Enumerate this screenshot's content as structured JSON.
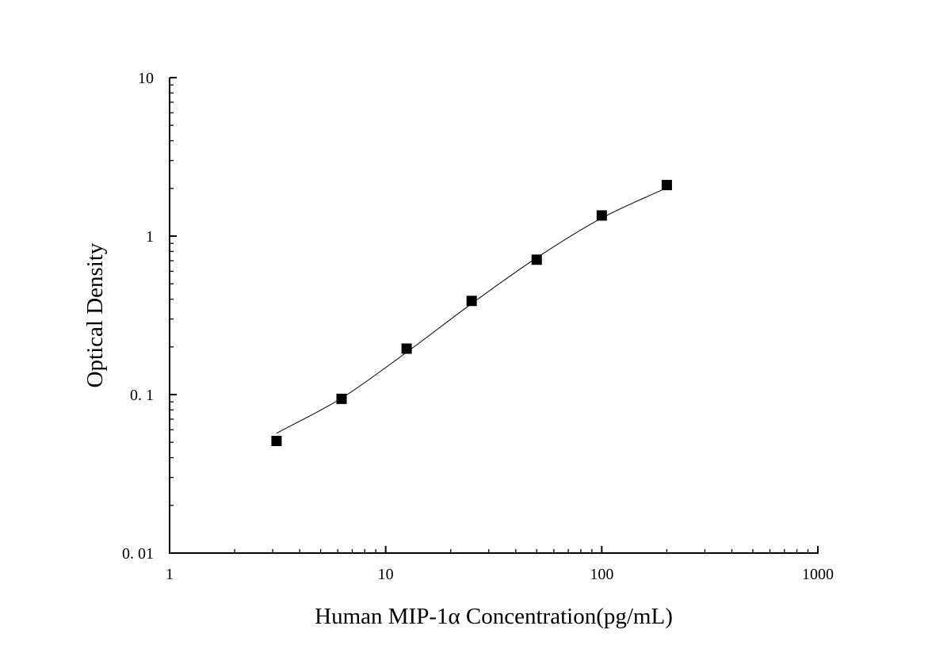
{
  "chart_data": {
    "type": "scatter",
    "xlabel": "Human MIP-1α Concentration(pg/mL)",
    "ylabel": "Optical Density",
    "xscale": "log",
    "yscale": "log",
    "xlim": [
      1,
      1000
    ],
    "ylim": [
      0.01,
      10
    ],
    "x_ticks": [
      {
        "value": 1,
        "label": "1"
      },
      {
        "value": 10,
        "label": "10"
      },
      {
        "value": 100,
        "label": "100"
      },
      {
        "value": 1000,
        "label": "1000"
      }
    ],
    "y_ticks": [
      {
        "value": 0.01,
        "label": "0. 01"
      },
      {
        "value": 0.1,
        "label": "0. 1"
      },
      {
        "value": 1,
        "label": "1"
      },
      {
        "value": 10,
        "label": "10"
      }
    ],
    "grid": false,
    "series": [
      {
        "marker": "square",
        "x": [
          3.125,
          6.25,
          12.5,
          25,
          50,
          100,
          200
        ],
        "y": [
          0.051,
          0.094,
          0.195,
          0.39,
          0.71,
          1.35,
          2.1
        ]
      }
    ],
    "fit_curve": {
      "x": [
        3.125,
        6.25,
        12.5,
        25,
        50,
        100,
        200
      ],
      "y": [
        0.057,
        0.095,
        0.185,
        0.375,
        0.73,
        1.3,
        2.02
      ]
    }
  }
}
